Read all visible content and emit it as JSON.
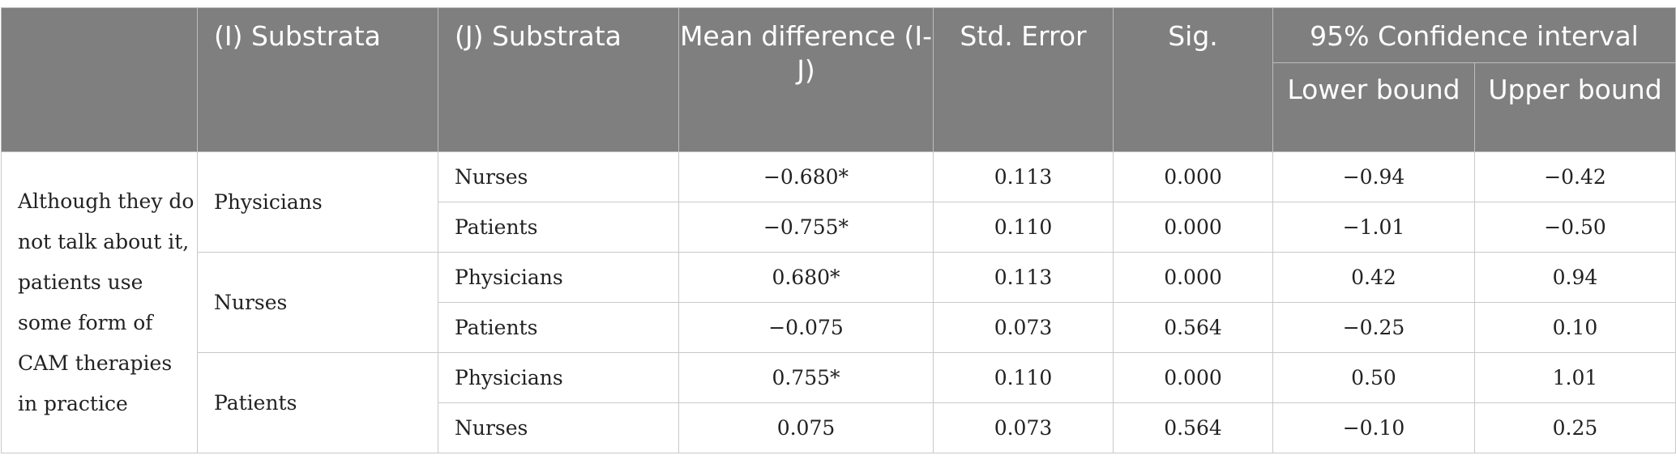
{
  "headers": {
    "col_blank": "",
    "col_i": "(I) Substrata",
    "col_j": "(J) Substrata",
    "col_mean": "Mean difference (I-J)",
    "col_se": "Std. Error",
    "col_sig": "Sig.",
    "col_ci": "95% Confidence interval",
    "col_lower": "Lower bound",
    "col_upper": "Upper bound"
  },
  "measure": "Although they do not talk about it, patients use some form of CAM therapies in practice",
  "groups": [
    {
      "i_label": "Physicians",
      "rows": [
        {
          "j": "Nurses",
          "mean": "−0.680*",
          "se": "0.113",
          "sig": "0.000",
          "lower": "−0.94",
          "upper": "−0.42"
        },
        {
          "j": "Patients",
          "mean": "−0.755*",
          "se": "0.110",
          "sig": "0.000",
          "lower": "−1.01",
          "upper": "−0.50"
        }
      ]
    },
    {
      "i_label": "Nurses",
      "rows": [
        {
          "j": "Physicians",
          "mean": "0.680*",
          "se": "0.113",
          "sig": "0.000",
          "lower": "0.42",
          "upper": "0.94"
        },
        {
          "j": "Patients",
          "mean": "−0.075",
          "se": "0.073",
          "sig": "0.564",
          "lower": "−0.25",
          "upper": "0.10"
        }
      ]
    },
    {
      "i_label": "Patients",
      "rows": [
        {
          "j": "Physicians",
          "mean": "0.755*",
          "se": "0.110",
          "sig": "0.000",
          "lower": "0.50",
          "upper": "1.01"
        },
        {
          "j": "Nurses",
          "mean": "0.075",
          "se": "0.073",
          "sig": "0.564",
          "lower": "−0.10",
          "upper": "0.25"
        }
      ]
    }
  ],
  "colors": {
    "header_bg": "#7f7f7f",
    "header_text": "#ffffff",
    "border": "#c9c9c9",
    "body_text": "#222222"
  }
}
